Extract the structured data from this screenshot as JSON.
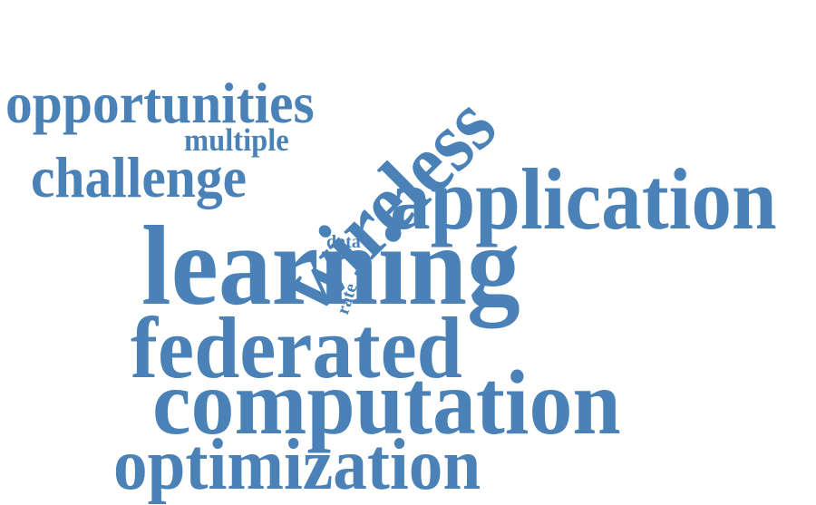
{
  "word_color": "#4a82b8",
  "background": "#ffffff",
  "words": [
    {
      "text": "opportunities",
      "orientation": "horizontal"
    },
    {
      "text": "multiple",
      "orientation": "horizontal"
    },
    {
      "text": "challenge",
      "orientation": "horizontal"
    },
    {
      "text": "wireless",
      "orientation": "diagonal"
    },
    {
      "text": "application",
      "orientation": "horizontal"
    },
    {
      "text": "data",
      "orientation": "horizontal"
    },
    {
      "text": "rate",
      "orientation": "diagonal"
    },
    {
      "text": "learning",
      "orientation": "horizontal"
    },
    {
      "text": "federated",
      "orientation": "horizontal"
    },
    {
      "text": "computation",
      "orientation": "horizontal"
    },
    {
      "text": "optimization",
      "orientation": "horizontal"
    }
  ]
}
